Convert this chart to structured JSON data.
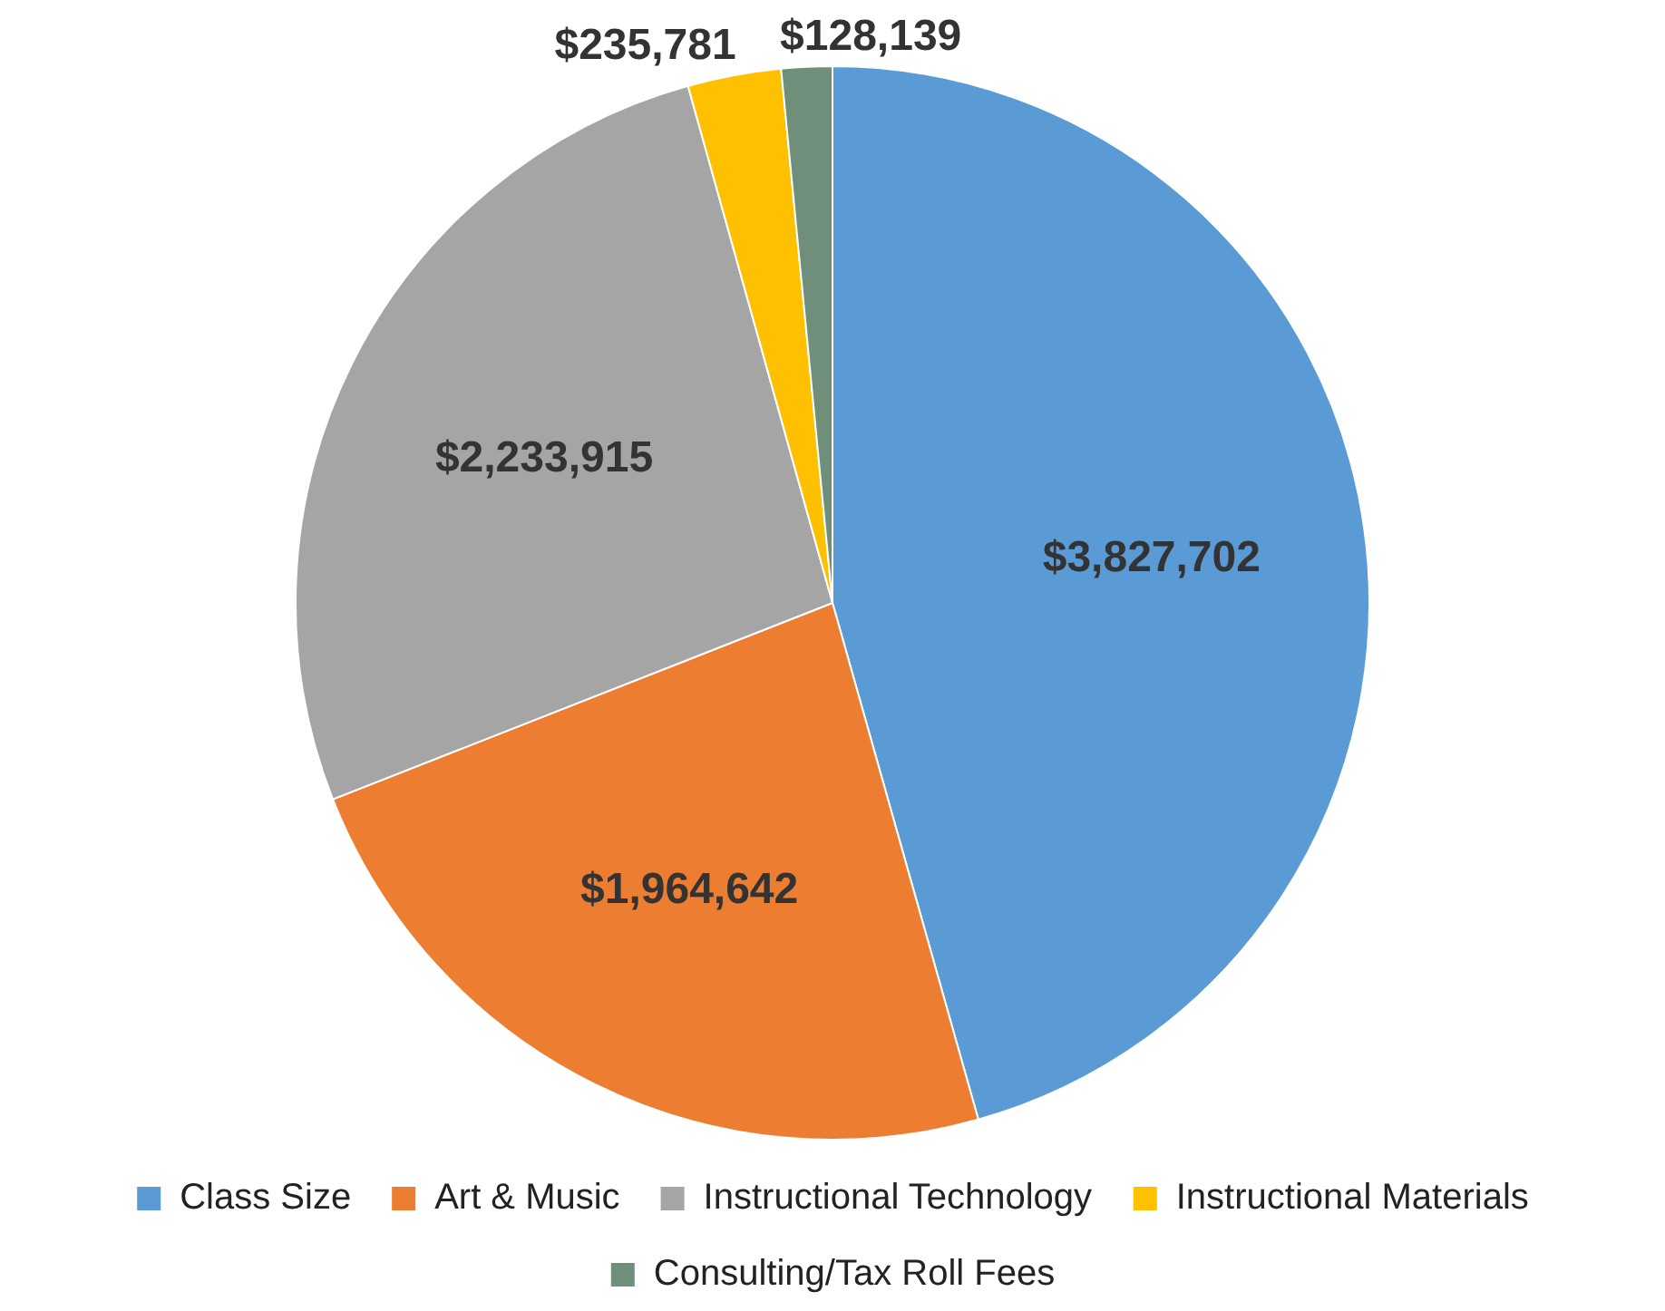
{
  "chart_data": {
    "type": "pie",
    "categories": [
      "Class Size",
      "Art & Music",
      "Instructional Technology",
      "Instructional Materials",
      "Consulting/Tax Roll Fees"
    ],
    "values": [
      3827702,
      1964642,
      2233915,
      235781,
      128139
    ],
    "colors": [
      "#5b9bd5",
      "#ed7d31",
      "#a5a5a5",
      "#ffc000",
      "#6f8f7a"
    ],
    "value_labels": [
      "$3,827,702",
      "$1,964,642",
      "$2,233,915",
      "$235,781",
      "$128,139"
    ],
    "legend": "bottom"
  }
}
